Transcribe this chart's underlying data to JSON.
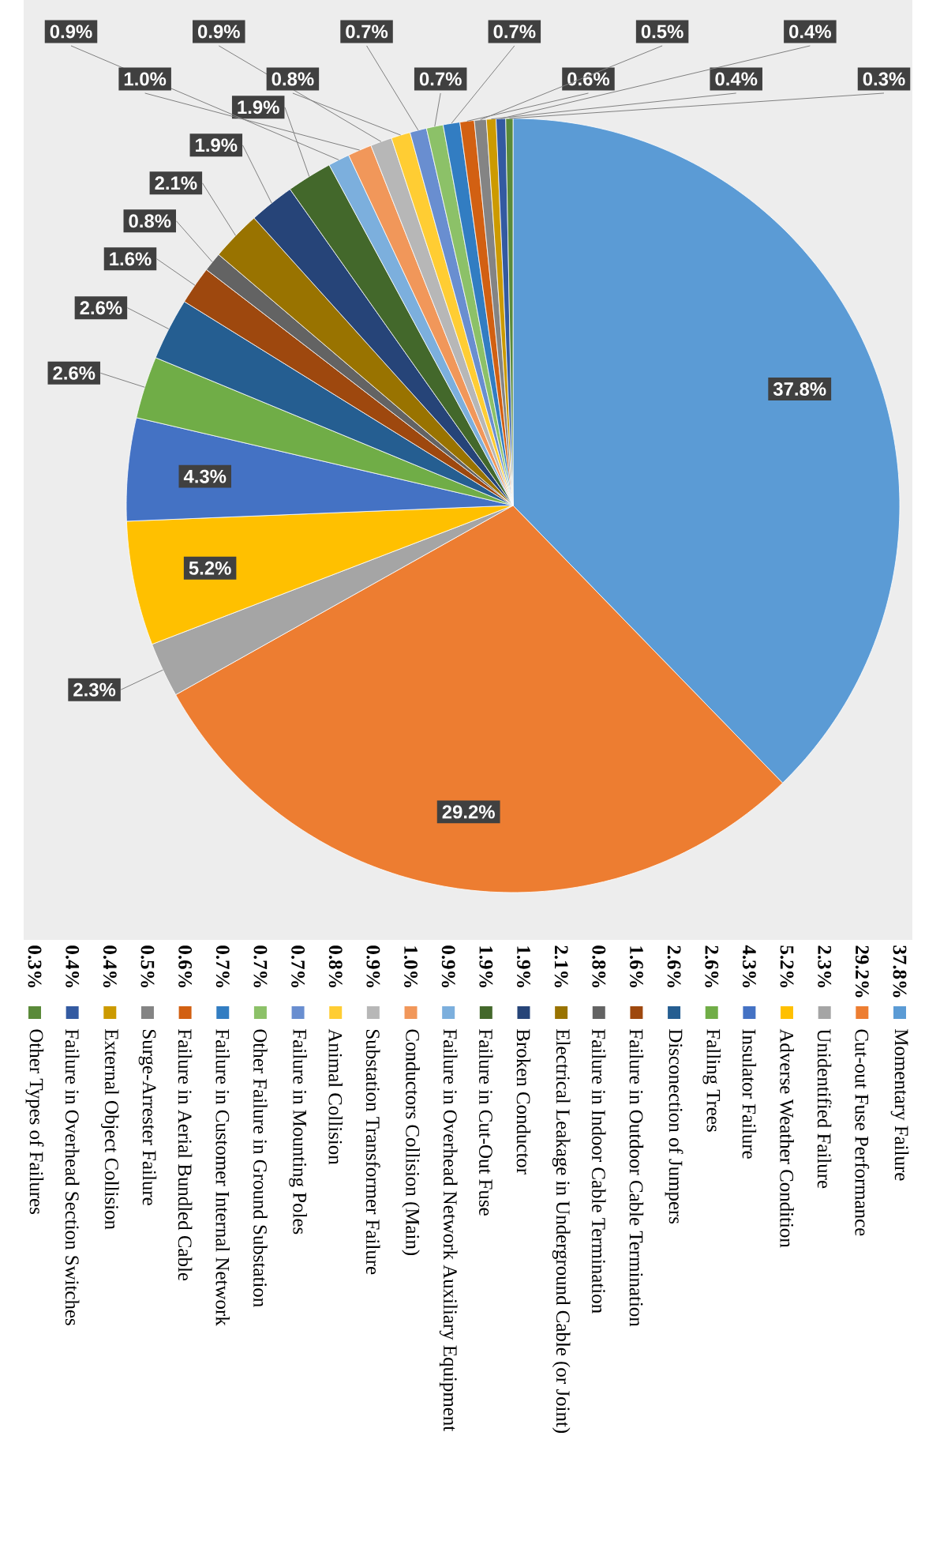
{
  "chart_data": {
    "type": "pie",
    "legend": "bottom",
    "categories": [
      "Momentary Failure",
      "Cut-out Fuse Performance",
      "Unidentified Failure",
      "Adverse Weather Condition",
      "Insulator Failure",
      "Falling Trees",
      "Disconection of Jumpers",
      "Failure in Outdoor Cable Termination",
      "Failure in Indoor Cable Termination",
      "Electrical Leakage in Underground Cable (or Joint)",
      "Broken Conductor",
      "Failure in Cut-Out Fuse",
      "Failure in Overhead Network Auxiliary Equipment",
      "Conductors Collision (Main)",
      "Substation Transformer Failure",
      "Animal Collision",
      "Failure in Mounting Poles",
      "Other Failure in Ground Substation",
      "Failure in Customer Internal Network",
      "Failure in Aerial Bundled Cable",
      "Surge-Arrester Failure",
      "External Object Collision",
      "Failure in Overhead Section Switches",
      "Other Types of Failures"
    ],
    "values": [
      37.8,
      29.2,
      2.3,
      5.2,
      4.3,
      2.6,
      2.6,
      1.6,
      0.8,
      2.1,
      1.9,
      1.9,
      0.9,
      1.0,
      0.9,
      0.8,
      0.7,
      0.7,
      0.7,
      0.6,
      0.5,
      0.4,
      0.4,
      0.3
    ],
    "value_labels": [
      "37.8%",
      "29.2%",
      "2.3%",
      "5.2%",
      "4.3%",
      "2.6%",
      "2.6%",
      "1.6%",
      "0.8%",
      "2.1%",
      "1.9%",
      "1.9%",
      "0.9%",
      "1.0%",
      "0.9%",
      "0.8%",
      "0.7%",
      "0.7%",
      "0.7%",
      "0.6%",
      "0.5%",
      "0.4%",
      "0.4%",
      "0.3%"
    ],
    "colors": [
      "#5b9bd5",
      "#ed7d31",
      "#a5a5a5",
      "#ffc000",
      "#4472c4",
      "#70ad47",
      "#255e91",
      "#9e480e",
      "#636363",
      "#997300",
      "#264478",
      "#43682b",
      "#7cafdd",
      "#f1975a",
      "#b7b7b7",
      "#ffcd33",
      "#698ed0",
      "#8cc168",
      "#327dc2",
      "#d26012",
      "#848484",
      "#cc9a00",
      "#335aa1",
      "#5a8a39"
    ]
  }
}
